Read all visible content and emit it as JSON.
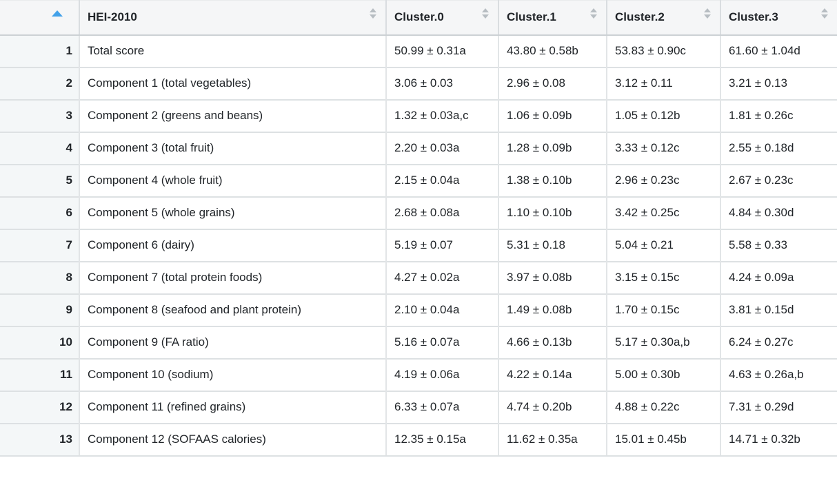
{
  "table": {
    "columns": [
      {
        "label": "",
        "sort": "ascending"
      },
      {
        "label": "HEI-2010",
        "sort": "none"
      },
      {
        "label": "Cluster.0",
        "sort": "none"
      },
      {
        "label": "Cluster.1",
        "sort": "none"
      },
      {
        "label": "Cluster.2",
        "sort": "none"
      },
      {
        "label": "Cluster.3",
        "sort": "none"
      }
    ],
    "rows": [
      {
        "num": "1",
        "label": "Total score",
        "values": [
          "50.99 ± 0.31a",
          "43.80 ± 0.58b",
          "53.83 ± 0.90c",
          "61.60 ± 1.04d"
        ]
      },
      {
        "num": "2",
        "label": "Component 1 (total vegetables)",
        "values": [
          "3.06 ± 0.03",
          "2.96 ± 0.08",
          "3.12 ± 0.11",
          "3.21 ± 0.13"
        ]
      },
      {
        "num": "3",
        "label": "Component 2 (greens and beans)",
        "values": [
          "1.32 ± 0.03a,c",
          "1.06 ± 0.09b",
          "1.05 ± 0.12b",
          "1.81 ± 0.26c"
        ]
      },
      {
        "num": "4",
        "label": "Component 3 (total fruit)",
        "values": [
          "2.20 ± 0.03a",
          "1.28 ± 0.09b",
          "3.33 ± 0.12c",
          "2.55 ± 0.18d"
        ]
      },
      {
        "num": "5",
        "label": "Component 4 (whole fruit)",
        "values": [
          "2.15 ± 0.04a",
          "1.38 ± 0.10b",
          "2.96 ± 0.23c",
          "2.67 ± 0.23c"
        ]
      },
      {
        "num": "6",
        "label": "Component 5 (whole grains)",
        "values": [
          "2.68 ± 0.08a",
          "1.10 ± 0.10b",
          "3.42 ± 0.25c",
          "4.84 ± 0.30d"
        ]
      },
      {
        "num": "7",
        "label": "Component 6 (dairy)",
        "values": [
          "5.19 ± 0.07",
          "5.31 ± 0.18",
          "5.04 ± 0.21",
          "5.58 ± 0.33"
        ]
      },
      {
        "num": "8",
        "label": "Component 7 (total protein foods)",
        "values": [
          "4.27 ± 0.02a",
          "3.97 ± 0.08b",
          "3.15 ± 0.15c",
          "4.24 ± 0.09a"
        ]
      },
      {
        "num": "9",
        "label": "Component 8 (seafood and plant protein)",
        "values": [
          "2.10 ± 0.04a",
          "1.49 ± 0.08b",
          "1.70 ± 0.15c",
          "3.81 ± 0.15d"
        ]
      },
      {
        "num": "10",
        "label": "Component 9 (FA ratio)",
        "values": [
          "5.16 ± 0.07a",
          "4.66 ± 0.13b",
          "5.17 ± 0.30a,b",
          "6.24 ± 0.27c"
        ]
      },
      {
        "num": "11",
        "label": "Component 10 (sodium)",
        "values": [
          "4.19 ± 0.06a",
          "4.22 ± 0.14a",
          "5.00 ± 0.30b",
          "4.63 ± 0.26a,b"
        ]
      },
      {
        "num": "12",
        "label": "Component 11 (refined grains)",
        "values": [
          "6.33 ± 0.07a",
          "4.74 ± 0.20b",
          "4.88 ± 0.22c",
          "7.31 ± 0.29d"
        ]
      },
      {
        "num": "13",
        "label": "Component 12 (SOFAAS calories)",
        "values": [
          "12.35 ± 0.15a",
          "11.62 ± 0.35a",
          "15.01 ± 0.45b",
          "14.71 ± 0.32b"
        ]
      }
    ]
  },
  "icons": {
    "sort_ascending": "▲",
    "sort_up": "▲",
    "sort_down": "▼"
  },
  "colors": {
    "sorted_arrow": "#42a1e9",
    "unsorted_arrow": "#b7bdc2",
    "header_bg": "#f5f6f7",
    "sorted_column_bg": "#f4f7f8",
    "row_border": "#dde1e3",
    "header_border": "#ccd1d4"
  }
}
